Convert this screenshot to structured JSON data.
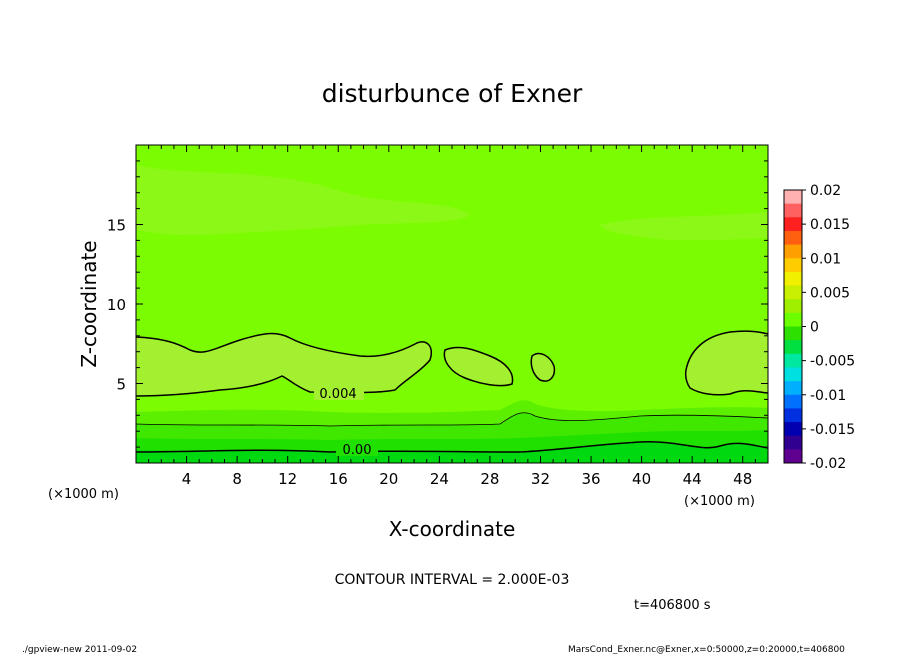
{
  "chart_data": {
    "type": "contour",
    "title": "disturbunce of Exner",
    "xlabel": "X-coordinate",
    "ylabel": "Z-coordinate",
    "x_unit": "(×1000 m)",
    "y_unit": "(×1000 m)",
    "xlim": [
      0,
      50
    ],
    "ylim": [
      0,
      20
    ],
    "x_ticks": [
      "4",
      "8",
      "12",
      "16",
      "20",
      "24",
      "28",
      "32",
      "36",
      "40",
      "44",
      "48"
    ],
    "y_ticks": [
      "5",
      "10",
      "15"
    ],
    "colorbar": {
      "labels": [
        "0.02",
        "0.015",
        "0.01",
        "0.005",
        "0",
        "-0.005",
        "-0.01",
        "-0.015",
        "-0.02"
      ],
      "colors": [
        "#ffb0b0",
        "#ff6060",
        "#ff2020",
        "#ff6010",
        "#ffa000",
        "#ffcc00",
        "#f0f000",
        "#c8f000",
        "#a0ee00",
        "#6cff00",
        "#2ee000",
        "#00e040",
        "#00e8a0",
        "#00e0e0",
        "#00b0ff",
        "#0070ff",
        "#0030e0",
        "#0000b0",
        "#300090",
        "#600090"
      ]
    },
    "contour_labels": [
      "0.004",
      "0.00"
    ],
    "contour_interval_text": "CONTOUR INTERVAL = 2.000E-03",
    "time_text": "t=406800 s"
  },
  "footer": {
    "left": "./gpview-new  2011-09-02",
    "right": "MarsCond_Exner.nc@Exner,x=0:50000,z=0:20000,t=406800"
  }
}
